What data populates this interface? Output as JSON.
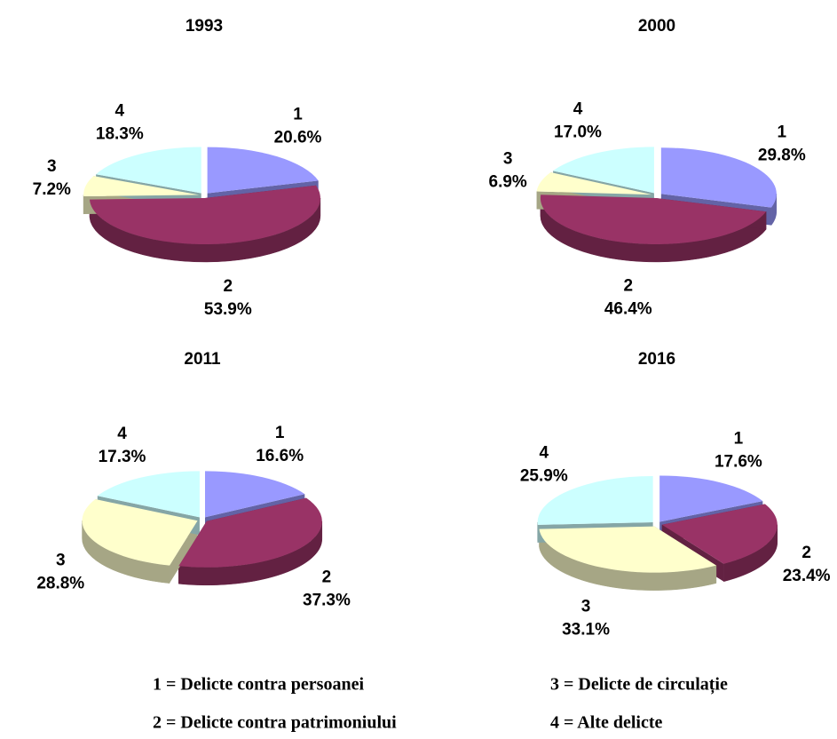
{
  "chart_data": [
    {
      "type": "pie",
      "title": "1993",
      "categories": [
        "1",
        "2",
        "3",
        "4"
      ],
      "values": [
        20.6,
        53.9,
        7.2,
        18.3
      ],
      "value_labels": [
        "20.6%",
        "53.9%",
        "7.2%",
        "18.3%"
      ],
      "colors": [
        "#9999ff",
        "#993366",
        "#ffffcc",
        "#ccffff"
      ]
    },
    {
      "type": "pie",
      "title": "2000",
      "categories": [
        "1",
        "2",
        "3",
        "4"
      ],
      "values": [
        29.8,
        46.4,
        6.9,
        17.0
      ],
      "value_labels": [
        "29.8%",
        "46.4%",
        "6.9%",
        "17.0%"
      ],
      "colors": [
        "#9999ff",
        "#993366",
        "#ffffcc",
        "#ccffff"
      ]
    },
    {
      "type": "pie",
      "title": "2011",
      "categories": [
        "1",
        "2",
        "3",
        "4"
      ],
      "values": [
        16.6,
        37.3,
        28.8,
        17.3
      ],
      "value_labels": [
        "16.6%",
        "37.3%",
        "28.8%",
        "17.3%"
      ],
      "colors": [
        "#9999ff",
        "#993366",
        "#ffffcc",
        "#ccffff"
      ]
    },
    {
      "type": "pie",
      "title": "2016",
      "categories": [
        "1",
        "2",
        "3",
        "4"
      ],
      "values": [
        17.6,
        23.4,
        33.1,
        25.9
      ],
      "value_labels": [
        "17.6%",
        "23.4%",
        "33.1%",
        "25.9%"
      ],
      "colors": [
        "#9999ff",
        "#993366",
        "#ffffcc",
        "#ccffff"
      ]
    }
  ],
  "legend": [
    "1 = Delicte contra persoanei",
    "2 = Delicte contra patrimoniului",
    "3 = Delicte de circulație",
    "4 = Alte delicte"
  ]
}
